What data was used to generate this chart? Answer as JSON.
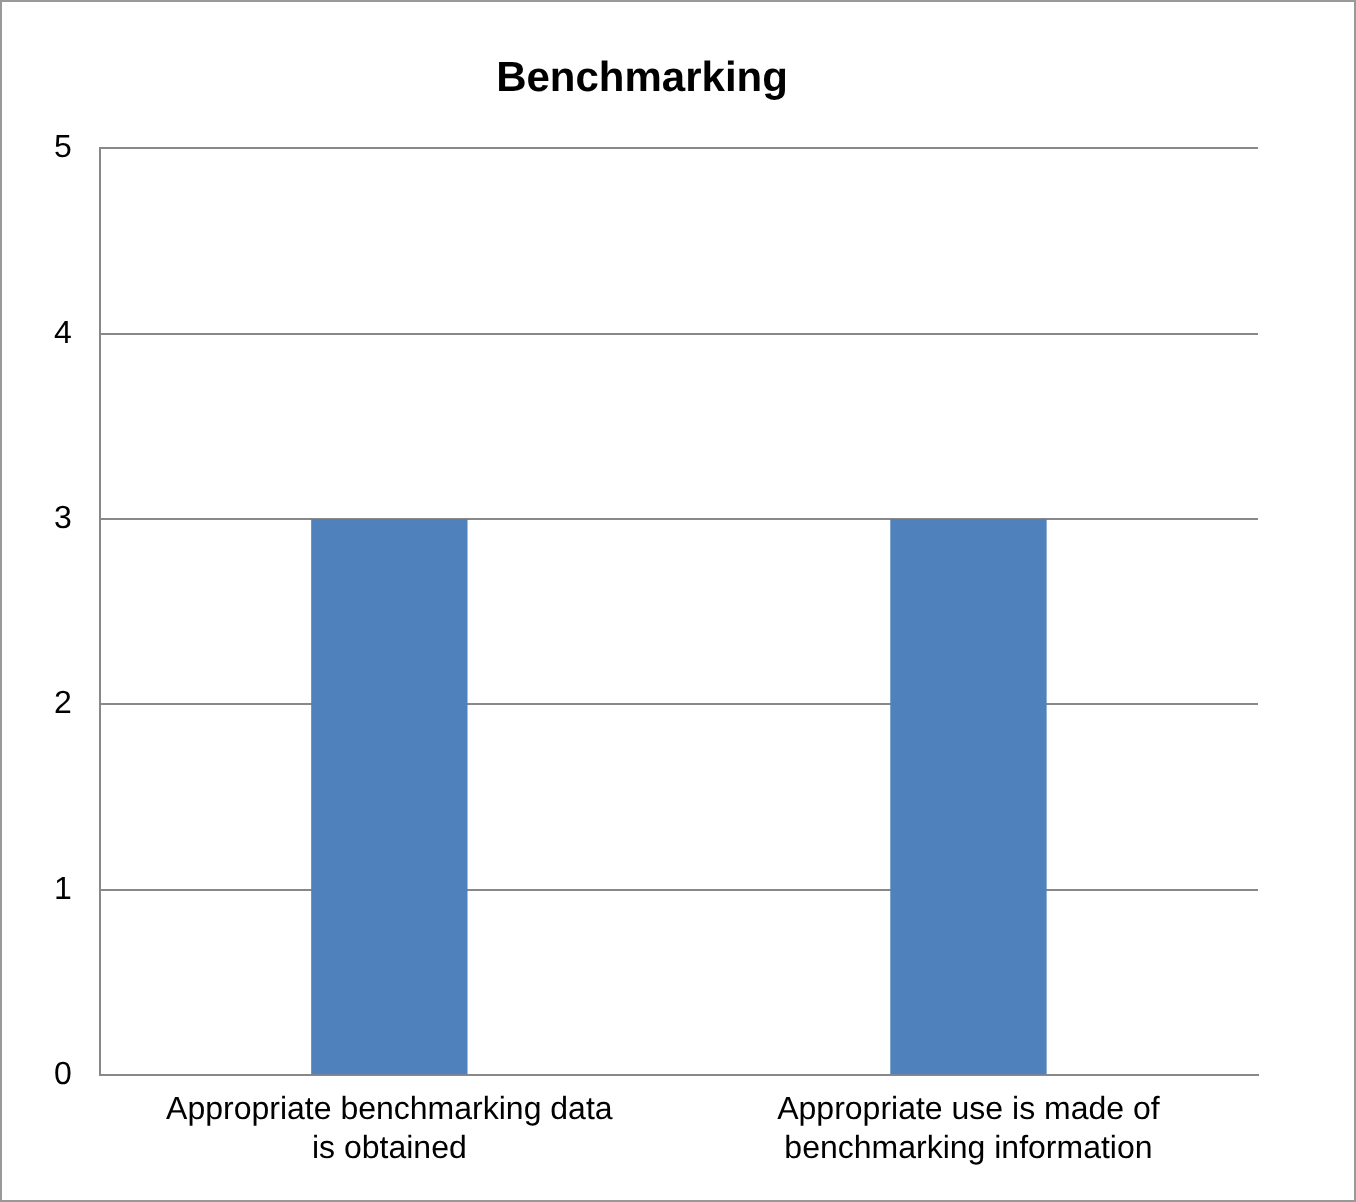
{
  "chart_data": {
    "type": "bar",
    "title": "Benchmarking",
    "categories": [
      "Appropriate benchmarking data is obtained",
      "Appropriate use is made of benchmarking information"
    ],
    "values": [
      3,
      3
    ],
    "color": "#4f81bd",
    "ylim": [
      0,
      5
    ],
    "yticks": [
      0,
      1,
      2,
      3,
      4,
      5
    ],
    "grid": "y",
    "legend": false
  }
}
